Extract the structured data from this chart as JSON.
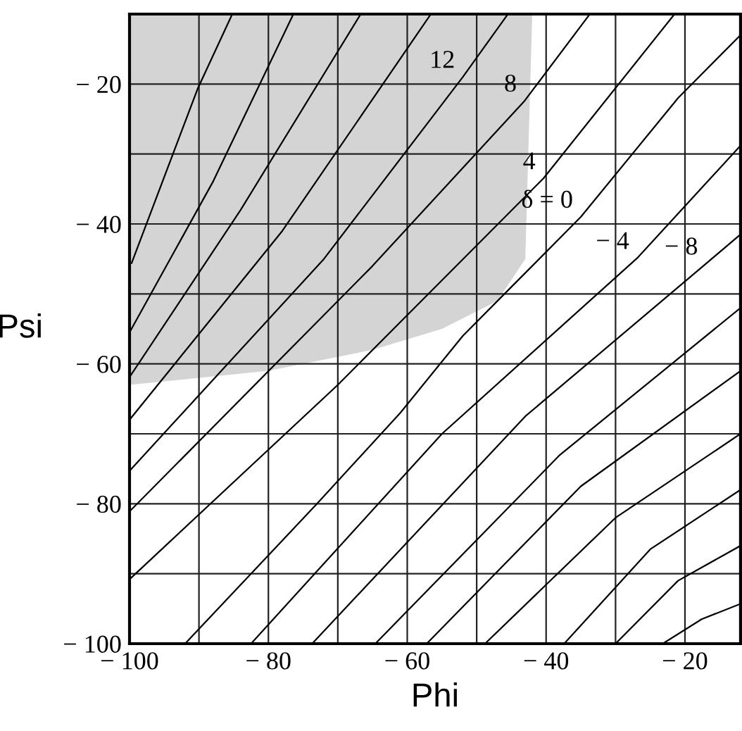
{
  "chart_data": {
    "type": "line",
    "xlabel": "Phi",
    "ylabel": "Psi",
    "xlim": [
      -100,
      -12
    ],
    "ylim": [
      -100,
      -10
    ],
    "xticks": [
      {
        "value": -100,
        "label": "− 100"
      },
      {
        "value": -90,
        "label": null
      },
      {
        "value": -80,
        "label": "− 80"
      },
      {
        "value": -70,
        "label": null
      },
      {
        "value": -60,
        "label": "− 60"
      },
      {
        "value": -50,
        "label": null
      },
      {
        "value": -40,
        "label": "− 40"
      },
      {
        "value": -30,
        "label": null
      },
      {
        "value": -20,
        "label": "− 20"
      }
    ],
    "yticks": [
      {
        "value": -100,
        "label": "− 100"
      },
      {
        "value": -90,
        "label": null
      },
      {
        "value": -80,
        "label": "− 80"
      },
      {
        "value": -70,
        "label": null
      },
      {
        "value": -60,
        "label": "− 60"
      },
      {
        "value": -50,
        "label": null
      },
      {
        "value": -40,
        "label": "− 40"
      },
      {
        "value": -30,
        "label": null
      },
      {
        "value": -20,
        "label": "− 20"
      }
    ],
    "grid": true,
    "legend": false,
    "marker": "none",
    "line_style": "solid",
    "series": [
      {
        "type": "area",
        "color": "#d4d4d4",
        "x": [
          -100,
          -80,
          -65,
          -55,
          -47,
          -43,
          -42
        ],
        "values": [
          -63,
          -61,
          -58,
          -55,
          -51,
          -45,
          -10
        ]
      },
      {
        "color": "#000000",
        "x": [
          -99.7,
          -90.2,
          -85.2
        ],
        "values": [
          -45.6,
          -20.7,
          -10
        ]
      },
      {
        "color": "#000000",
        "x": [
          -100,
          -88,
          -76.4
        ],
        "values": [
          -55.5,
          -34,
          -10
        ]
      },
      {
        "color": "#000000",
        "x": [
          -100,
          -84,
          -66.7
        ],
        "values": [
          -61.9,
          -38,
          -10
        ]
      },
      {
        "color": "#000000",
        "x": [
          -100,
          -78,
          -56.6
        ],
        "values": [
          -68,
          -41,
          -10
        ]
      },
      {
        "color": "#000000",
        "x": [
          -100,
          -72,
          -52,
          -45.5
        ],
        "values": [
          -75.3,
          -45,
          -19,
          -10
        ]
      },
      {
        "color": "#000000",
        "x": [
          -100,
          -65,
          -43.1,
          -33.7
        ],
        "values": [
          -81.1,
          -46,
          -22.4,
          -10
        ]
      },
      {
        "color": "#000000",
        "x": [
          -100,
          -70,
          -40.4,
          -21.5
        ],
        "values": [
          -90.8,
          -63,
          -33.5,
          -10
        ]
      },
      {
        "color": "#000000",
        "x": [
          -92,
          -73,
          -61,
          -52,
          -45,
          -35,
          -21,
          -12
        ],
        "values": [
          -100,
          -80,
          -67,
          -56,
          -49,
          -39,
          -22,
          -13
        ]
      },
      {
        "color": "#000000",
        "x": [
          -82.5,
          -55,
          -26.9,
          -12
        ],
        "values": [
          -100,
          -70,
          -44.9,
          -28.8
        ]
      },
      {
        "color": "#000000",
        "x": [
          -73.7,
          -43,
          -17,
          -12
        ],
        "values": [
          -100,
          -67.5,
          -45.7,
          -41.5
        ]
      },
      {
        "color": "#000000",
        "x": [
          -64.6,
          -38,
          -12
        ],
        "values": [
          -100,
          -73,
          -52
        ]
      },
      {
        "color": "#000000",
        "x": [
          -57.2,
          -35,
          -12
        ],
        "values": [
          -100,
          -77.5,
          -61
        ]
      },
      {
        "color": "#000000",
        "x": [
          -48.8,
          -30,
          -12
        ],
        "values": [
          -100,
          -82,
          -70
        ]
      },
      {
        "color": "#000000",
        "x": [
          -37.4,
          -25,
          -12
        ],
        "values": [
          -100,
          -86.5,
          -78
        ]
      },
      {
        "color": "#000000",
        "x": [
          -30,
          -21,
          -12
        ],
        "values": [
          -100,
          -91,
          -86
        ]
      },
      {
        "color": "#000000",
        "x": [
          -23.2,
          -17.6,
          -12
        ],
        "values": [
          -100,
          -96.5,
          -94.3
        ]
      }
    ],
    "annotations": [
      {
        "text": "12",
        "x": -52,
        "y": -19
      },
      {
        "text": "8",
        "x": -43.1,
        "y": -22.4
      },
      {
        "text": "4",
        "x": -40.4,
        "y": -33.5
      },
      {
        "text": "δ = 0",
        "x": -35,
        "y": -39
      },
      {
        "text": "− 4",
        "x": -26.9,
        "y": -44.9
      },
      {
        "text": "− 8",
        "x": -17,
        "y": -45.7
      }
    ]
  }
}
